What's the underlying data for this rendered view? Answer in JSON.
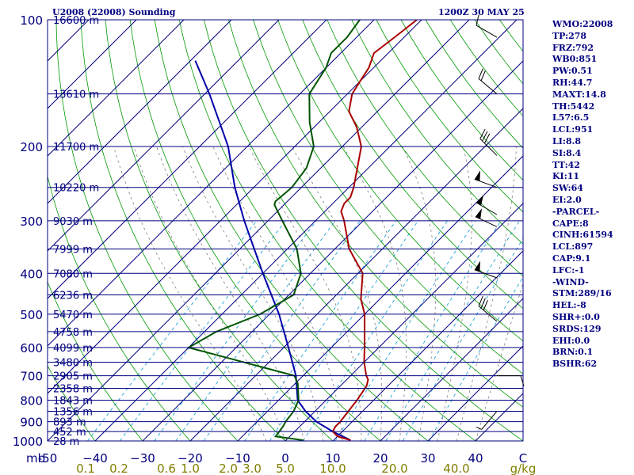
{
  "header": {
    "station": "U2008 (22008) Sounding",
    "time": "1200Z 30 MAY 25"
  },
  "indices": [
    "WMO:22008",
    "TP:278",
    "FRZ:792",
    "WB0:851",
    "PW:0.51",
    "RH:44.7",
    "MAXT:14.8",
    "TH:5442",
    "L57:6.5",
    "LCL:951",
    "LI:8.8",
    "SI:8.4",
    "TT:42",
    "KI:11",
    "SW:64",
    "EI:2.0",
    "-PARCEL-",
    "CAPE:8",
    "CINH:61594",
    "LCL:897",
    "CAP:9.1",
    "LFC:-1",
    "-WIND-",
    "STM:289/16",
    "HEL:-8",
    "SHR+:0.0",
    "SRDS:129",
    "EHI:0.0",
    "BRN:0.1",
    "BSHR:62"
  ],
  "colors": {
    "isobar": "#000080",
    "isotherm": "#000080",
    "dry_adiabat": "#009900",
    "moist_adiabat": "#808080",
    "mixing_ratio": "#33aadd",
    "temperature": "#aa0000",
    "dewpoint": "#005500",
    "parcel": "#0000aa",
    "wind_barb": "#000000",
    "mixing_ratio_label": "#808000",
    "axis_label": "#000080"
  },
  "chart_data": {
    "type": "skew-t",
    "x_unit_label": "C",
    "pressure_unit_label": "mb",
    "mixing_ratio_unit_label": "g/kg",
    "xlim": [
      -50,
      50
    ],
    "pressure_range": [
      100,
      1000
    ],
    "pressure_ticks": [
      100,
      200,
      300,
      400,
      500,
      600,
      700,
      800,
      900,
      1000
    ],
    "temp_ticks": [
      -50,
      -40,
      -30,
      -20,
      -10,
      0,
      10,
      20,
      30,
      40
    ],
    "temp_tick_labels": [
      "-50",
      "−40",
      "−30",
      "−20",
      "−10",
      "0",
      "10",
      "20",
      "30",
      "40"
    ],
    "mixing_ratio_ticks": [
      {
        "label": "0.1",
        "temp": -42
      },
      {
        "label": "0.2",
        "temp": -35
      },
      {
        "label": "0.6",
        "temp": -25
      },
      {
        "label": "1.0",
        "temp": -20
      },
      {
        "label": "2.0",
        "temp": -12
      },
      {
        "label": "3.0",
        "temp": -7
      },
      {
        "label": "5.0",
        "temp": 0
      },
      {
        "label": "10.0",
        "temp": 10
      },
      {
        "label": "20.0",
        "temp": 23
      },
      {
        "label": "40.0",
        "temp": 36
      }
    ],
    "height_levels": [
      {
        "p": 100,
        "label": "16600 m"
      },
      {
        "p": 150,
        "label": "13610 m"
      },
      {
        "p": 200,
        "label": "11700 m"
      },
      {
        "p": 250,
        "label": "10220 m"
      },
      {
        "p": 300,
        "label": "9030 m"
      },
      {
        "p": 350,
        "label": "7999 m"
      },
      {
        "p": 400,
        "label": "7080 m"
      },
      {
        "p": 450,
        "label": "6236 m"
      },
      {
        "p": 500,
        "label": "5470 m"
      },
      {
        "p": 550,
        "label": "4758 m"
      },
      {
        "p": 600,
        "label": "4099 m"
      },
      {
        "p": 650,
        "label": "3480 m"
      },
      {
        "p": 700,
        "label": "2905 m"
      },
      {
        "p": 750,
        "label": "2358 m"
      },
      {
        "p": 800,
        "label": "1843 m"
      },
      {
        "p": 850,
        "label": "1356 m"
      },
      {
        "p": 900,
        "label": "893 m"
      },
      {
        "p": 950,
        "label": "452 m"
      },
      {
        "p": 1000,
        "label": "28 m"
      }
    ],
    "temperature": [
      [
        996,
        13.6
      ],
      [
        975,
        10.0
      ],
      [
        950,
        8.0
      ],
      [
        925,
        7.5
      ],
      [
        900,
        7.5
      ],
      [
        850,
        7.0
      ],
      [
        800,
        6.5
      ],
      [
        740,
        5.5
      ],
      [
        715,
        4.5
      ],
      [
        700,
        3.3
      ],
      [
        650,
        0.0
      ],
      [
        600,
        -3.0
      ],
      [
        500,
        -10.0
      ],
      [
        460,
        -14.0
      ],
      [
        400,
        -19.0
      ],
      [
        350,
        -27.0
      ],
      [
        300,
        -34.0
      ],
      [
        285,
        -36.6
      ],
      [
        273,
        -37.6
      ],
      [
        264,
        -37.6
      ],
      [
        250,
        -39.0
      ],
      [
        220,
        -43.0
      ],
      [
        200,
        -46.0
      ],
      [
        180,
        -51.0
      ],
      [
        165,
        -56.0
      ],
      [
        150,
        -59.0
      ],
      [
        140,
        -60.0
      ],
      [
        130,
        -61.0
      ],
      [
        120,
        -63.0
      ],
      [
        110,
        -62.0
      ],
      [
        100,
        -61.0
      ]
    ],
    "dewpoint": [
      [
        996,
        3.6
      ],
      [
        975,
        -3.0
      ],
      [
        925,
        -3.5
      ],
      [
        900,
        -4.0
      ],
      [
        850,
        -4.5
      ],
      [
        800,
        -5.8
      ],
      [
        730,
        -9.5
      ],
      [
        700,
        -11.8
      ],
      [
        600,
        -40.0
      ],
      [
        550,
        -37.5
      ],
      [
        500,
        -32.0
      ],
      [
        450,
        -29.0
      ],
      [
        400,
        -32.0
      ],
      [
        350,
        -38.0
      ],
      [
        300,
        -47.0
      ],
      [
        275,
        -52.0
      ],
      [
        270,
        -52.5
      ],
      [
        250,
        -52.0
      ],
      [
        225,
        -53.0
      ],
      [
        200,
        -56.0
      ],
      [
        175,
        -62.0
      ],
      [
        150,
        -68.0
      ],
      [
        130,
        -70.0
      ],
      [
        120,
        -72.0
      ],
      [
        110,
        -72.0
      ],
      [
        100,
        -73.0
      ]
    ],
    "parcel": [
      [
        996,
        13.6
      ],
      [
        950,
        8.0
      ],
      [
        900,
        2.5
      ],
      [
        850,
        -2.0
      ],
      [
        800,
        -6.0
      ],
      [
        700,
        -11.5
      ],
      [
        600,
        -19.0
      ],
      [
        500,
        -28.0
      ],
      [
        400,
        -40.0
      ],
      [
        300,
        -55.0
      ],
      [
        250,
        -64.0
      ],
      [
        200,
        -74.0
      ],
      [
        150,
        -89.0
      ],
      [
        125,
        -99.0
      ]
    ],
    "wind_barbs": [
      {
        "p": 110,
        "dir": 300,
        "speed": 10
      },
      {
        "p": 150,
        "dir": 310,
        "speed": 20
      },
      {
        "p": 210,
        "dir": 315,
        "speed": 30
      },
      {
        "p": 250,
        "dir": 290,
        "speed": 50
      },
      {
        "p": 290,
        "dir": 300,
        "speed": 50
      },
      {
        "p": 310,
        "dir": 295,
        "speed": 50
      },
      {
        "p": 410,
        "dir": 290,
        "speed": 50
      },
      {
        "p": 520,
        "dir": 310,
        "speed": 30
      },
      {
        "p": 700,
        "dir": 90,
        "speed": 10
      },
      {
        "p": 850,
        "dir": 220,
        "speed": 5
      }
    ]
  }
}
